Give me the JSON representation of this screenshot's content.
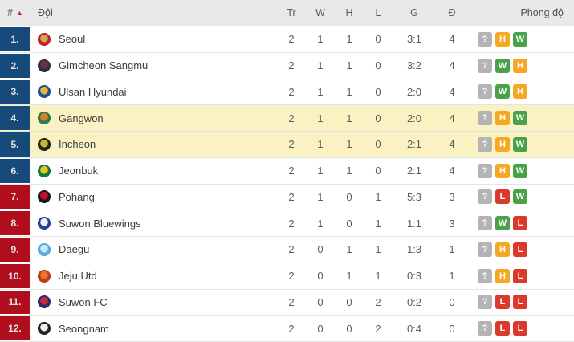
{
  "header": {
    "rank": "#",
    "sort_icon": "▲",
    "team": "Đội",
    "played": "Tr",
    "wins": "W",
    "draws": "H",
    "losses": "L",
    "goals": "G",
    "points": "Đ",
    "form": "Phong độ"
  },
  "colors": {
    "header_bg": "#e9e9e9",
    "sort_arrow": "#b5322a",
    "zone_top": "#164a7b",
    "zone_bottom": "#b00e1d",
    "row_highlight": "#fbf2c3",
    "badge": {
      "?": "#b4b4b4",
      "W": "#48a348",
      "H": "#f6a723",
      "L": "#dc392d"
    }
  },
  "rows": [
    {
      "rank": "1.",
      "team": "Seoul",
      "zone": "top",
      "highlight": false,
      "played": "2",
      "wins": "1",
      "draws": "1",
      "losses": "0",
      "goals": "3:1",
      "points": "4",
      "form": [
        "?",
        "H",
        "W"
      ],
      "logo": {
        "inner": "#d4a94e",
        "outer": "#c01f2f"
      }
    },
    {
      "rank": "2.",
      "team": "Gimcheon Sangmu",
      "zone": "top",
      "highlight": false,
      "played": "2",
      "wins": "1",
      "draws": "1",
      "losses": "0",
      "goals": "3:2",
      "points": "4",
      "form": [
        "?",
        "W",
        "H"
      ],
      "logo": {
        "inner": "#6b3148",
        "outer": "#2e2e44"
      }
    },
    {
      "rank": "3.",
      "team": "Ulsan Hyundai",
      "zone": "top",
      "highlight": false,
      "played": "2",
      "wins": "1",
      "draws": "1",
      "losses": "0",
      "goals": "2:0",
      "points": "4",
      "form": [
        "?",
        "W",
        "H"
      ],
      "logo": {
        "inner": "#f0b42f",
        "outer": "#1c4f9e"
      }
    },
    {
      "rank": "4.",
      "team": "Gangwon",
      "zone": "top",
      "highlight": true,
      "played": "2",
      "wins": "1",
      "draws": "1",
      "losses": "0",
      "goals": "2:0",
      "points": "4",
      "form": [
        "?",
        "H",
        "W"
      ],
      "logo": {
        "inner": "#e07b28",
        "outer": "#2e7d46"
      }
    },
    {
      "rank": "5.",
      "team": "Incheon",
      "zone": "top",
      "highlight": true,
      "played": "2",
      "wins": "1",
      "draws": "1",
      "losses": "0",
      "goals": "2:1",
      "points": "4",
      "form": [
        "?",
        "H",
        "W"
      ],
      "logo": {
        "inner": "#c9b62a",
        "outer": "#222222"
      }
    },
    {
      "rank": "6.",
      "team": "Jeonbuk",
      "zone": "top",
      "highlight": false,
      "played": "2",
      "wins": "1",
      "draws": "1",
      "losses": "0",
      "goals": "2:1",
      "points": "4",
      "form": [
        "?",
        "H",
        "W"
      ],
      "logo": {
        "inner": "#e8c51f",
        "outer": "#137a3b"
      }
    },
    {
      "rank": "7.",
      "team": "Pohang",
      "zone": "bottom",
      "highlight": false,
      "played": "2",
      "wins": "1",
      "draws": "0",
      "losses": "1",
      "goals": "5:3",
      "points": "3",
      "form": [
        "?",
        "L",
        "W"
      ],
      "logo": {
        "inner": "#c8102e",
        "outer": "#1a1a1a"
      }
    },
    {
      "rank": "8.",
      "team": "Suwon Bluewings",
      "zone": "bottom",
      "highlight": false,
      "played": "2",
      "wins": "1",
      "draws": "0",
      "losses": "1",
      "goals": "1:1",
      "points": "3",
      "form": [
        "?",
        "W",
        "L"
      ],
      "logo": {
        "inner": "#f0f0f5",
        "outer": "#1f4398"
      }
    },
    {
      "rank": "9.",
      "team": "Daegu",
      "zone": "bottom",
      "highlight": false,
      "played": "2",
      "wins": "0",
      "draws": "1",
      "losses": "1",
      "goals": "1:3",
      "points": "1",
      "form": [
        "?",
        "H",
        "L"
      ],
      "logo": {
        "inner": "#cfe8f7",
        "outer": "#58aede"
      }
    },
    {
      "rank": "10.",
      "team": "Jeju Utd",
      "zone": "bottom",
      "highlight": false,
      "played": "2",
      "wins": "0",
      "draws": "1",
      "losses": "1",
      "goals": "0:3",
      "points": "1",
      "form": [
        "?",
        "H",
        "L"
      ],
      "logo": {
        "inner": "#e8762c",
        "outer": "#c03a20"
      }
    },
    {
      "rank": "11.",
      "team": "Suwon FC",
      "zone": "bottom",
      "highlight": false,
      "played": "2",
      "wins": "0",
      "draws": "0",
      "losses": "2",
      "goals": "0:2",
      "points": "0",
      "form": [
        "?",
        "L",
        "L"
      ],
      "logo": {
        "inner": "#cf2838",
        "outer": "#22306b"
      }
    },
    {
      "rank": "12.",
      "team": "Seongnam",
      "zone": "bottom",
      "highlight": false,
      "played": "2",
      "wins": "0",
      "draws": "0",
      "losses": "2",
      "goals": "0:4",
      "points": "0",
      "form": [
        "?",
        "L",
        "L"
      ],
      "logo": {
        "inner": "#eeeeee",
        "outer": "#222222"
      }
    }
  ]
}
